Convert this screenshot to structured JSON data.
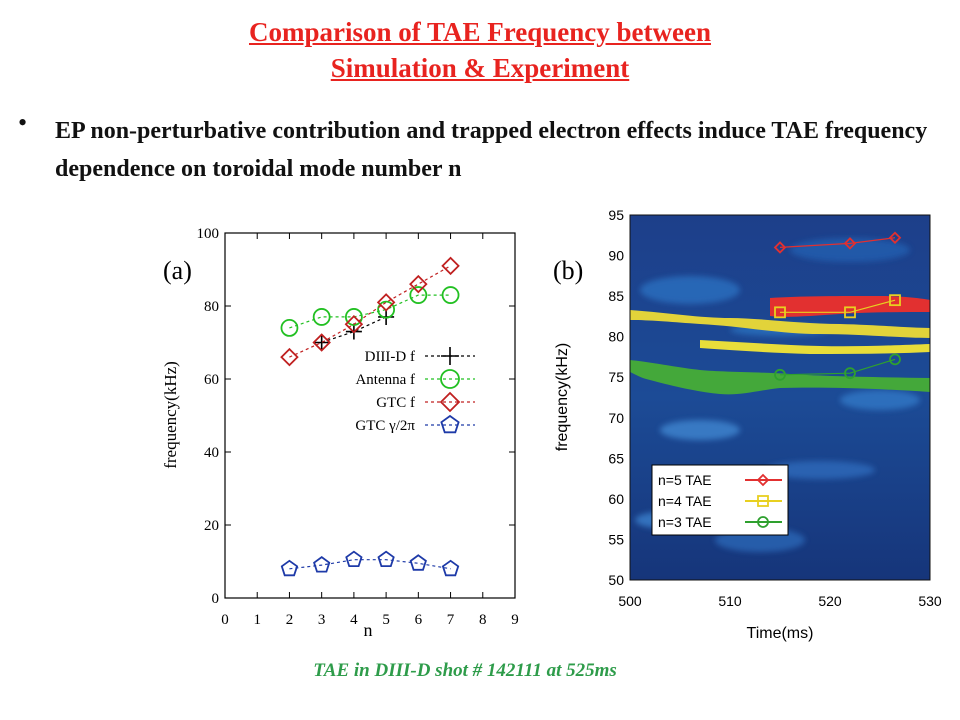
{
  "title_line1": "Comparison of TAE Frequency between",
  "title_line2": "Simulation & Experiment",
  "bullet": "EP non-perturbative contribution and trapped electron effects induce TAE frequency dependence on toroidal mode number n",
  "caption": "TAE in DIII-D shot # 142111 at 525ms",
  "colors": {
    "title": "#e8231f",
    "caption": "#2e9c4a"
  },
  "chart_data": [
    {
      "type": "line",
      "panel_label": "(a)",
      "xlabel": "n",
      "ylabel": "frequency(kHz)",
      "xlim": [
        0,
        9
      ],
      "ylim": [
        0,
        100
      ],
      "xticks": [
        0,
        1,
        2,
        3,
        4,
        5,
        6,
        7,
        8,
        9
      ],
      "yticks": [
        0,
        20,
        40,
        60,
        80,
        100
      ],
      "series": [
        {
          "name": "DIII-D f",
          "color": "#000000",
          "marker": "plus",
          "x": [
            3,
            4,
            5
          ],
          "y": [
            70,
            73,
            77
          ]
        },
        {
          "name": "Antenna f",
          "color": "#22c022",
          "marker": "circle",
          "x": [
            2,
            3,
            4,
            5,
            6,
            7
          ],
          "y": [
            74,
            77,
            77,
            79,
            83,
            83
          ]
        },
        {
          "name": "GTC f",
          "color": "#c02020",
          "marker": "diamond",
          "x": [
            2,
            3,
            4,
            5,
            6,
            7
          ],
          "y": [
            66,
            70,
            75,
            81,
            86,
            91
          ]
        },
        {
          "name": "GTC γ/2π",
          "color": "#1e3aa8",
          "marker": "pentagon",
          "x": [
            2,
            3,
            4,
            5,
            6,
            7
          ],
          "y": [
            8,
            9,
            10.5,
            10.5,
            9.5,
            8
          ]
        }
      ]
    },
    {
      "type": "line",
      "panel_label": "(b)",
      "xlabel": "Time(ms)",
      "ylabel": "frequency(kHz)",
      "xlim": [
        500,
        530
      ],
      "ylim": [
        50,
        95
      ],
      "xticks": [
        500,
        510,
        520,
        530
      ],
      "yticks": [
        50,
        55,
        60,
        65,
        70,
        75,
        80,
        85,
        90,
        95
      ],
      "background": "spectrogram",
      "series": [
        {
          "name": "n=5 TAE",
          "color": "#e23030",
          "marker": "diamond",
          "x": [
            515,
            522,
            526.5
          ],
          "y": [
            91,
            91.5,
            92.2
          ]
        },
        {
          "name": "n=4 TAE",
          "color": "#e8d020",
          "marker": "square",
          "x": [
            515,
            522,
            526.5
          ],
          "y": [
            83,
            83,
            84.5
          ]
        },
        {
          "name": "n=3 TAE",
          "color": "#2ea02e",
          "marker": "circle",
          "x": [
            515,
            522,
            526.5
          ],
          "y": [
            75.3,
            75.5,
            77.2
          ]
        }
      ]
    }
  ]
}
